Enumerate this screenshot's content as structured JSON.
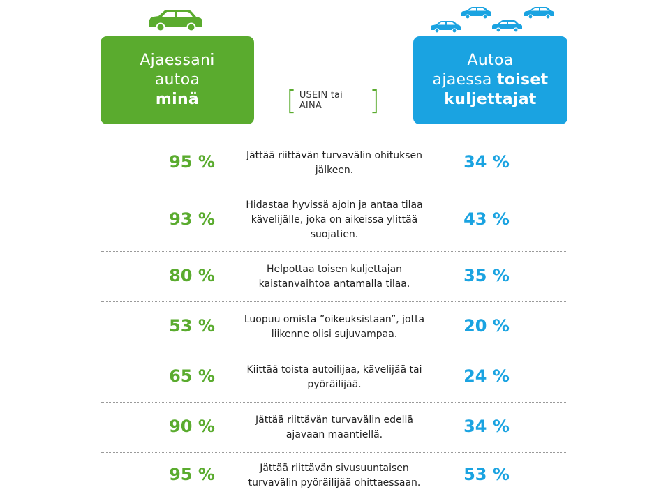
{
  "left_header": {
    "line1": "Ajaessani",
    "line2": "autoa",
    "line3": "minä"
  },
  "right_header": {
    "line1": "Autoa",
    "line2_prefix": "ajaessa ",
    "line2_strong": "toiset",
    "line3": "kuljettajat"
  },
  "frequency_label": "USEIN tai AINA",
  "colors": {
    "me": "#5aab2e",
    "others": "#1aa3e1",
    "text": "#222222"
  },
  "icons": {
    "left": "car-icon",
    "right": "cars-group-icon"
  },
  "chart_data": {
    "type": "table",
    "columns": [
      "Ajaessani autoa minä",
      "USEIN tai AINA",
      "Autoa ajaessa toiset kuljettajat"
    ],
    "rows": [
      {
        "me": "95 %",
        "behavior": "Jättää riittävän turvavälin ohituksen jälkeen.",
        "others": "34 %"
      },
      {
        "me": "93 %",
        "behavior": "Hidastaa hyvissä ajoin ja antaa tilaa kävelijälle, joka on aikeissa ylittää suojatien.",
        "others": "43 %"
      },
      {
        "me": "80 %",
        "behavior": "Helpottaa toisen kuljettajan kaistanvaihtoa antamalla tilaa.",
        "others": "35 %"
      },
      {
        "me": "53 %",
        "behavior": "Luopuu omista ”oikeuksistaan”, jotta liikenne olisi sujuvampaa.",
        "others": "20 %"
      },
      {
        "me": "65 %",
        "behavior": "Kiittää toista autoilijaa, kävelijää tai pyöräilijää.",
        "others": "24 %"
      },
      {
        "me": "90 %",
        "behavior": "Jättää riittävän turvavälin edellä ajavaan maantiellä.",
        "others": "34 %"
      },
      {
        "me": "95 %",
        "behavior": "Jättää riittävän sivusuuntaisen turvavälin pyöräilijää ohittaessaan.",
        "others": "53 %"
      }
    ],
    "series": [
      {
        "name": "Ajaessani autoa minä",
        "values": [
          95,
          93,
          80,
          53,
          65,
          90,
          95
        ]
      },
      {
        "name": "Autoa ajaessa toiset kuljettajat",
        "values": [
          34,
          43,
          35,
          20,
          24,
          34,
          53
        ]
      }
    ]
  }
}
